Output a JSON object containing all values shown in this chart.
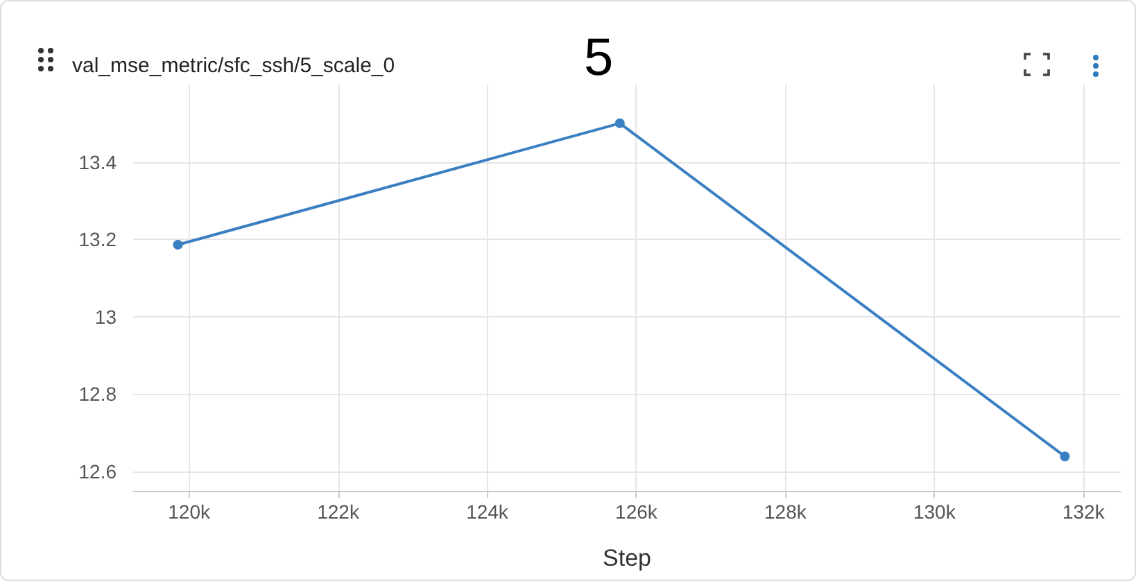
{
  "chart_data": {
    "type": "line",
    "title": "val_mse_metric/sfc_ssh/5_scale_0",
    "xlabel": "Step",
    "annotations": [
      "5"
    ],
    "x": [
      119850,
      125780,
      131750
    ],
    "series": [
      {
        "color": "#3a7fc1",
        "values": [
          13.186,
          13.5,
          12.639
        ]
      }
    ],
    "xlim": [
      119250,
      132500
    ],
    "xticks": [
      {
        "value": 120000,
        "label": "120k"
      },
      {
        "value": 122000,
        "label": "122k"
      },
      {
        "value": 124000,
        "label": "124k"
      },
      {
        "value": 126000,
        "label": "126k"
      },
      {
        "value": 128000,
        "label": "128k"
      },
      {
        "value": 130000,
        "label": "130k"
      },
      {
        "value": 132000,
        "label": "132k"
      }
    ],
    "ylim": [
      12.55,
      13.6
    ],
    "yticks": [
      12.6,
      12.8,
      13,
      13.2,
      13.4
    ],
    "grid": true,
    "marker": "circle",
    "line_style": "solid"
  }
}
